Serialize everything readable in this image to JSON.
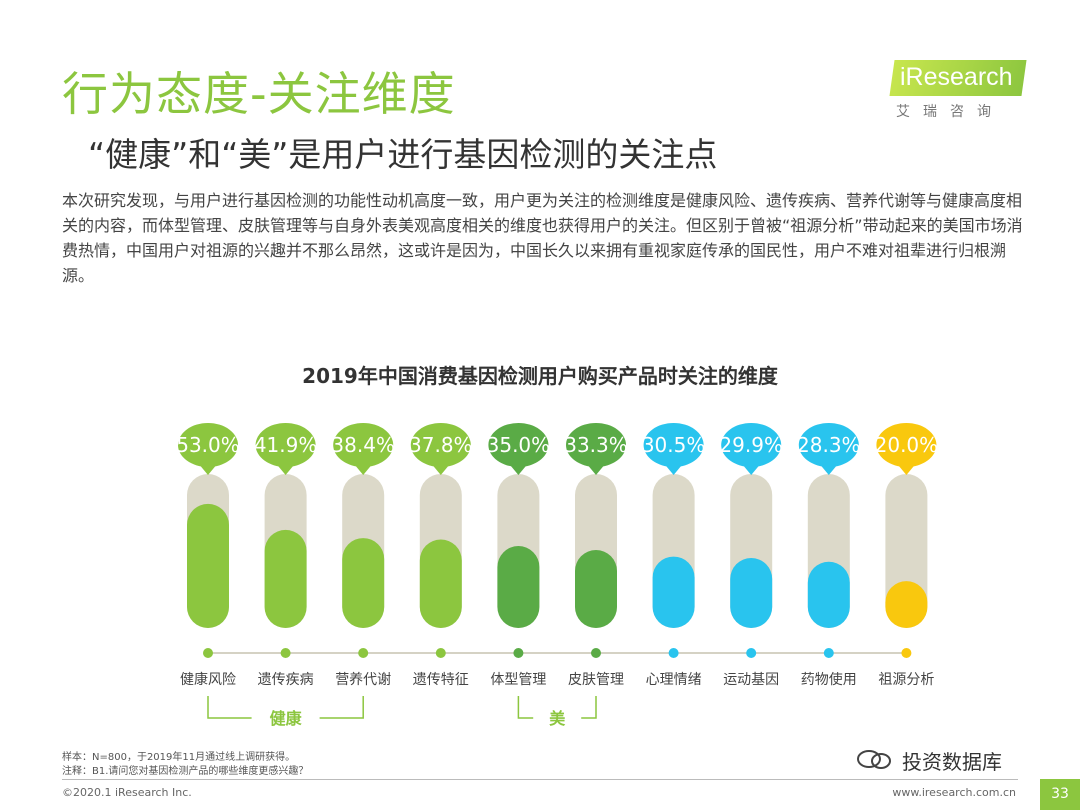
{
  "header": {
    "title": "行为态度-关注维度",
    "subtitle": "“健康”和“美”是用户进行基因检测的关注点"
  },
  "logo": {
    "brand": "iResearch",
    "sub": "艾瑞咨询"
  },
  "body": {
    "paragraph": "本次研究发现，与用户进行基因检测的功能性动机高度一致，用户更为关注的检测维度是健康风险、遗传疾病、营养代谢等与健康高度相关的内容，而体型管理、皮肤管理等与自身外表美观高度相关的维度也获得用户的关注。但区别于曾被“祖源分析”带动起来的美国市场消费热情，中国用户对祖源的兴趣并不那么昂然，这或许是因为，中国长久以来拥有重视家庭传承的国民性，用户不难对祖辈进行归根溯源。"
  },
  "chart_data": {
    "type": "bar",
    "title": "2019年中国消费基因检测用户购买产品时关注的维度",
    "categories": [
      "健康风险",
      "遗传疾病",
      "营养代谢",
      "遗传特征",
      "体型管理",
      "皮肤管理",
      "心理情绪",
      "运动基因",
      "药物使用",
      "祖源分析"
    ],
    "values": [
      53.0,
      41.9,
      38.4,
      37.8,
      35.0,
      33.3,
      30.5,
      29.9,
      28.3,
      20.0
    ],
    "value_labels": [
      "53.0%",
      "41.9%",
      "38.4%",
      "37.8%",
      "35.0%",
      "33.3%",
      "30.5%",
      "29.9%",
      "28.3%",
      "20.0%"
    ],
    "colors": [
      "#8cc63f",
      "#8cc63f",
      "#8cc63f",
      "#8cc63f",
      "#5aab46",
      "#5aab46",
      "#29c4ee",
      "#29c4ee",
      "#29c4ee",
      "#f9c80e"
    ],
    "ylim": [
      0,
      100
    ],
    "groups": [
      {
        "label": "健康",
        "from": 0,
        "to": 2
      },
      {
        "label": "美",
        "from": 4,
        "to": 5
      }
    ]
  },
  "footnotes": {
    "sample": "样本：N=800，于2019年11月通过线上调研获得。",
    "note": "注释：B1.请问您对基因检测产品的哪些维度更感兴趣？"
  },
  "footer": {
    "copyright": "©2020.1 iResearch Inc.",
    "url": "www.iresearch.com.cn",
    "page": "33",
    "watermark": "投资数据库"
  }
}
